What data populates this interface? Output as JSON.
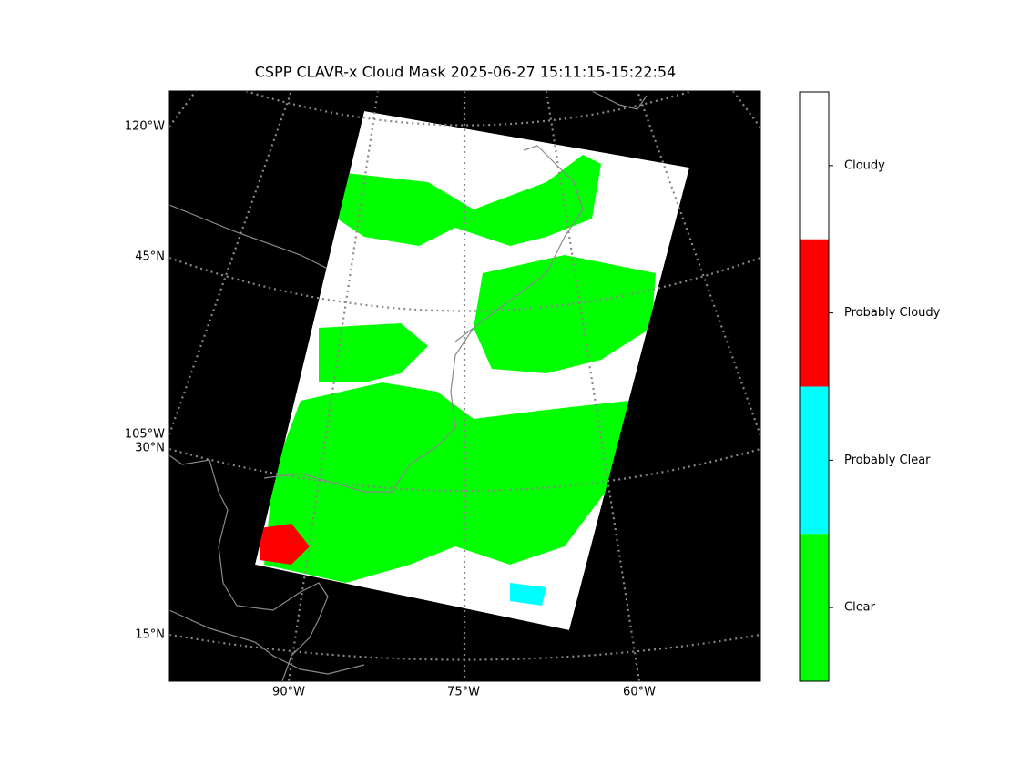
{
  "title": "CSPP CLAVR-x Cloud Mask 2025-06-27 15:11:15-15:22:54",
  "map": {
    "left_labels": [
      "120°W",
      "45°N",
      "105°W",
      "30°N",
      "15°N"
    ],
    "bottom_labels": [
      "90°W",
      "75°W",
      "60°W"
    ]
  },
  "colorbar": {
    "categories": [
      {
        "label": "Cloudy",
        "color": "#ffffff"
      },
      {
        "label": "Probably Cloudy",
        "color": "#ff0000"
      },
      {
        "label": "Probably Clear",
        "color": "#00ffff"
      },
      {
        "label": "Clear",
        "color": "#00ff00"
      }
    ]
  }
}
